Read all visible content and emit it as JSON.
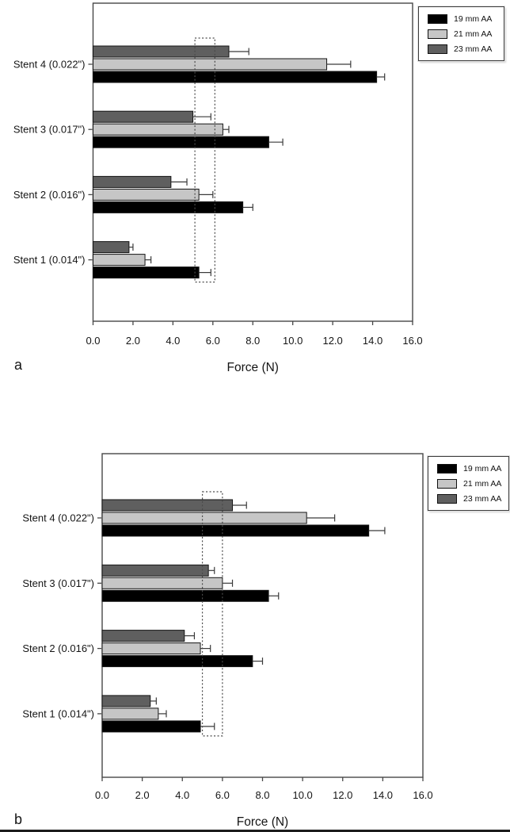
{
  "figure": {
    "panel_count": 2,
    "axis_title": "Force (N)"
  },
  "chart_data": [
    {
      "panel_label": "a",
      "type": "bar",
      "orientation": "horizontal",
      "title": "",
      "xlabel": "Force (N)",
      "ylabel": "",
      "xlim": [
        0.0,
        16.0
      ],
      "xticks": [
        0.0,
        2.0,
        4.0,
        6.0,
        8.0,
        10.0,
        12.0,
        14.0,
        16.0
      ],
      "grid": false,
      "categories_top_to_bottom": [
        "Stent 4 (0.022\")",
        "Stent 3 (0.017\")",
        "Stent 2 (0.016\")",
        "Stent 1 (0.014\")"
      ],
      "bars_within_group_top_to_bottom": [
        "23 mm AA",
        "21 mm AA",
        "19 mm AA"
      ],
      "series": [
        {
          "name": "19 mm AA",
          "color": "#000000",
          "values": [
            14.2,
            8.8,
            7.5,
            5.3
          ],
          "errors_plus": [
            0.4,
            0.7,
            0.5,
            0.6
          ]
        },
        {
          "name": "21 mm AA",
          "color": "#c6c6c6",
          "values": [
            11.7,
            6.5,
            5.3,
            2.6
          ],
          "errors_plus": [
            1.2,
            0.3,
            0.7,
            0.3
          ]
        },
        {
          "name": "23 mm AA",
          "color": "#5f5f5f",
          "values": [
            6.8,
            5.0,
            3.9,
            1.8
          ],
          "errors_plus": [
            1.0,
            0.9,
            0.8,
            0.2
          ]
        }
      ],
      "target_range_box": {
        "from": 5.1,
        "to": 6.1,
        "style": "dotted"
      },
      "legend_position": "top-right"
    },
    {
      "panel_label": "b",
      "type": "bar",
      "orientation": "horizontal",
      "title": "",
      "xlabel": "Force (N)",
      "ylabel": "",
      "xlim": [
        0.0,
        16.0
      ],
      "xticks": [
        0.0,
        2.0,
        4.0,
        6.0,
        8.0,
        10.0,
        12.0,
        14.0,
        16.0
      ],
      "grid": false,
      "categories_top_to_bottom": [
        "Stent 4 (0.022\")",
        "Stent 3 (0.017\")",
        "Stent 2 (0.016\")",
        "Stent 1 (0.014\")"
      ],
      "bars_within_group_top_to_bottom": [
        "23 mm AA",
        "21 mm AA",
        "19 mm AA"
      ],
      "series": [
        {
          "name": "19 mm AA",
          "color": "#000000",
          "values": [
            13.3,
            8.3,
            7.5,
            4.9
          ],
          "errors_plus": [
            0.8,
            0.5,
            0.5,
            0.7
          ]
        },
        {
          "name": "21 mm AA",
          "color": "#c6c6c6",
          "values": [
            10.2,
            6.0,
            4.9,
            2.8
          ],
          "errors_plus": [
            1.4,
            0.5,
            0.5,
            0.4
          ]
        },
        {
          "name": "23 mm AA",
          "color": "#5f5f5f",
          "values": [
            6.5,
            5.3,
            4.1,
            2.4
          ],
          "errors_plus": [
            0.7,
            0.3,
            0.5,
            0.3
          ]
        }
      ],
      "target_range_box": {
        "from": 5.0,
        "to": 6.0,
        "style": "dotted"
      },
      "legend_position": "top-right"
    }
  ]
}
